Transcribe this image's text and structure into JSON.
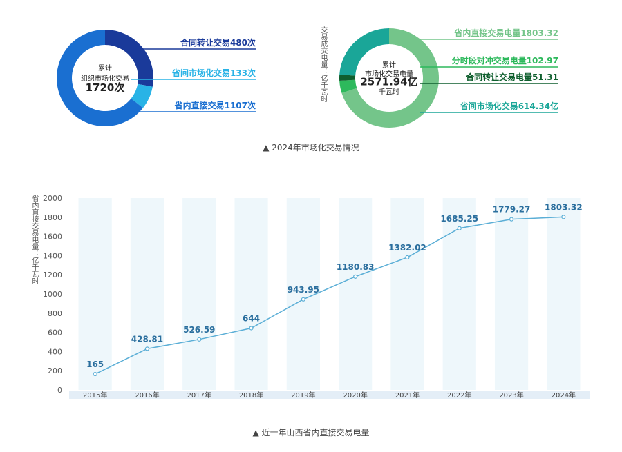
{
  "chart_data": [
    {
      "type": "pie",
      "center_text": [
        "累计",
        "组织市场化交易",
        "1720次"
      ],
      "slices": [
        {
          "label": "合同转让交易480次",
          "value": 480,
          "color": "#1a3a9a"
        },
        {
          "label": "省间市场化交易133次",
          "value": 133,
          "color": "#29b3e6"
        },
        {
          "label": "省内直接交易1107次",
          "value": 1107,
          "color": "#1a6fd1"
        }
      ]
    },
    {
      "type": "pie",
      "ylabel": "交易成交电量：亿千瓦时",
      "center_text": [
        "累计",
        "市场化交易电量",
        "2571.94亿",
        "千瓦时"
      ],
      "slices": [
        {
          "label": "省内直接交易电量1803.32",
          "value": 1803.32,
          "color": "#74c58a"
        },
        {
          "label": "分时段对冲交易电量102.97",
          "value": 102.97,
          "color": "#2db95c"
        },
        {
          "label": "合同转让交易电量51.31",
          "value": 51.31,
          "color": "#0f5f2e"
        },
        {
          "label": "省间市场化交易614.34亿",
          "value": 614.34,
          "color": "#1aa698"
        }
      ]
    },
    {
      "type": "line",
      "ylabel": "省内直接交易电量：亿千瓦时",
      "categories": [
        "2015年",
        "2016年",
        "2017年",
        "2018年",
        "2019年",
        "2020年",
        "2021年",
        "2022年",
        "2023年",
        "2024年"
      ],
      "values": [
        165,
        428.81,
        526.59,
        644,
        943.95,
        1180.83,
        1382.02,
        1685.25,
        1779.27,
        1803.32
      ],
      "labels": [
        "165",
        "428.81",
        "526.59",
        "644",
        "943.95",
        "1180.83",
        "1382.02",
        "1685.25",
        "1779.27",
        "1803.32"
      ],
      "ylim": [
        0,
        2000
      ],
      "yticks": [
        "0",
        "200",
        "400",
        "600",
        "800",
        "1000",
        "1200",
        "1400",
        "1600",
        "1800",
        "2000"
      ]
    }
  ],
  "captions": {
    "top": "▲  2024年市场化交易情况",
    "bottom": "▲  近十年山西省内直接交易电量"
  }
}
